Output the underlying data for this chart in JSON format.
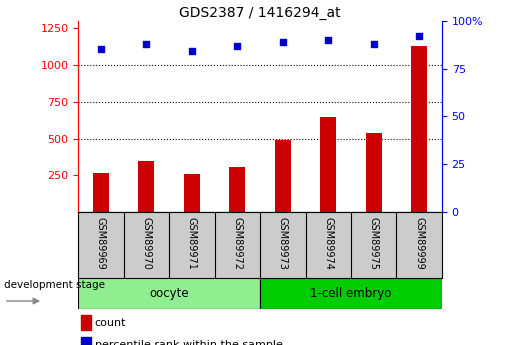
{
  "title": "GDS2387 / 1416294_at",
  "samples": [
    "GSM89969",
    "GSM89970",
    "GSM89971",
    "GSM89972",
    "GSM89973",
    "GSM89974",
    "GSM89975",
    "GSM89999"
  ],
  "counts": [
    265,
    350,
    260,
    305,
    490,
    645,
    540,
    1130
  ],
  "percentile_ranks": [
    85,
    88,
    84,
    87,
    89,
    90,
    88,
    92
  ],
  "bar_color": "#CC0000",
  "dot_color": "#0000CC",
  "ylim_left": [
    0,
    1300
  ],
  "ylim_right": [
    0,
    100
  ],
  "yticks_left": [
    250,
    500,
    750,
    1000,
    1250
  ],
  "yticks_right": [
    0,
    25,
    50,
    75,
    100
  ],
  "grid_values": [
    500,
    750,
    1000
  ],
  "background_color": "#ffffff",
  "legend_count_label": "count",
  "legend_pct_label": "percentile rank within the sample",
  "dev_stage_label": "development stage",
  "oocyte_color": "#90EE90",
  "embryo_color": "#00CC00",
  "gray_color": "#CCCCCC"
}
